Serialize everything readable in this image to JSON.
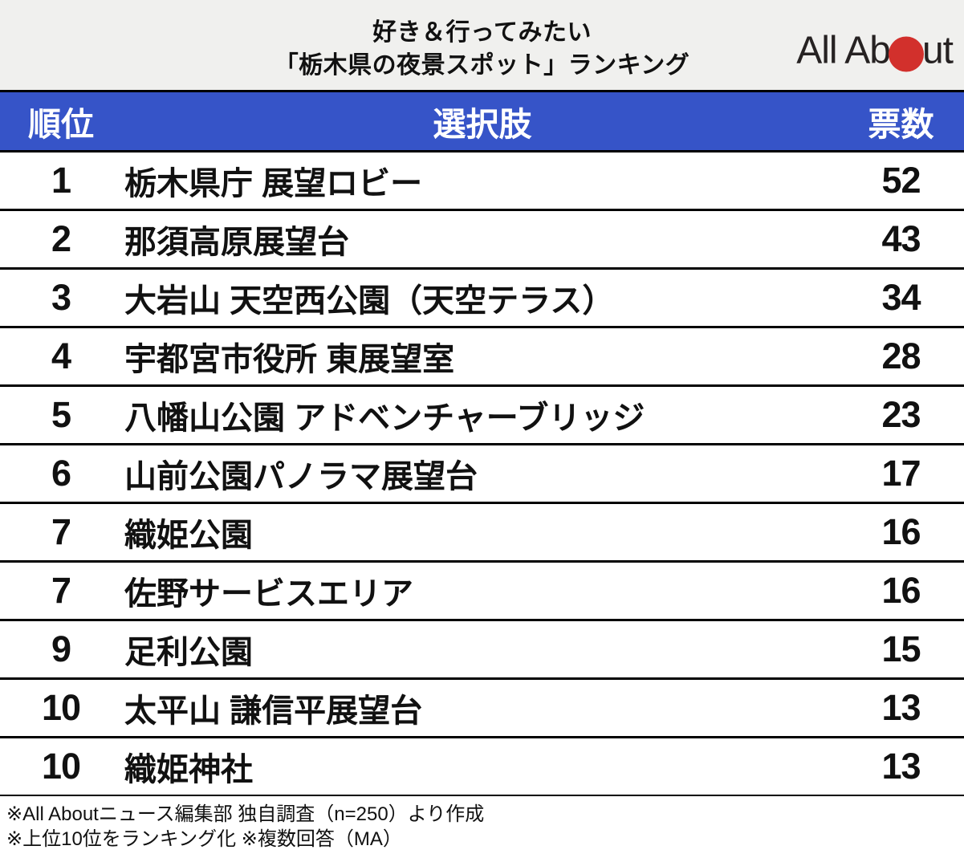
{
  "header": {
    "title_line1": "好き＆行ってみたい",
    "title_line2": "「栃木県の夜景スポット」ランキング",
    "logo_name": "All About",
    "logo_text_left": "All Ab",
    "logo_text_right": "ut"
  },
  "columns": {
    "rank": "順位",
    "choice": "選択肢",
    "votes": "票数"
  },
  "rows": [
    {
      "rank": "1",
      "choice": "栃木県庁 展望ロビー",
      "votes": "52"
    },
    {
      "rank": "2",
      "choice": "那須高原展望台",
      "votes": "43"
    },
    {
      "rank": "3",
      "choice": "大岩山 天空西公園（天空テラス）",
      "votes": "34"
    },
    {
      "rank": "4",
      "choice": "宇都宮市役所 東展望室",
      "votes": "28"
    },
    {
      "rank": "5",
      "choice": "八幡山公園 アドベンチャーブリッジ",
      "votes": "23"
    },
    {
      "rank": "6",
      "choice": "山前公園パノラマ展望台",
      "votes": "17"
    },
    {
      "rank": "7",
      "choice": "織姫公園",
      "votes": "16"
    },
    {
      "rank": "7",
      "choice": "佐野サービスエリア",
      "votes": "16"
    },
    {
      "rank": "9",
      "choice": "足利公園",
      "votes": "15"
    },
    {
      "rank": "10",
      "choice": "太平山 謙信平展望台",
      "votes": "13"
    },
    {
      "rank": "10",
      "choice": "織姫神社",
      "votes": "13"
    }
  ],
  "footer": {
    "note1": "※All Aboutニュース編集部 独自調査（n=250）より作成",
    "note2": "※上位10位をランキング化 ※複数回答（MA）"
  },
  "colors": {
    "header_bg": "#f0f0ee",
    "accent_blue": "#3654c8",
    "logo_red": "#d2302c",
    "border_black": "#000000"
  },
  "chart_data": {
    "type": "table",
    "title": "好き＆行ってみたい「栃木県の夜景スポット」ランキング",
    "columns": [
      "順位",
      "選択肢",
      "票数"
    ],
    "ranks": [
      1,
      2,
      3,
      4,
      5,
      6,
      7,
      7,
      9,
      10,
      10
    ],
    "categories": [
      "栃木県庁 展望ロビー",
      "那須高原展望台",
      "大岩山 天空西公園（天空テラス）",
      "宇都宮市役所 東展望室",
      "八幡山公園 アドベンチャーブリッジ",
      "山前公園パノラマ展望台",
      "織姫公園",
      "佐野サービスエリア",
      "足利公園",
      "太平山 謙信平展望台",
      "織姫神社"
    ],
    "values": [
      52,
      43,
      34,
      28,
      23,
      17,
      16,
      16,
      15,
      13,
      13
    ],
    "notes": [
      "※All Aboutニュース編集部 独自調査（n=250）より作成",
      "※上位10位をランキング化 ※複数回答（MA）"
    ]
  }
}
